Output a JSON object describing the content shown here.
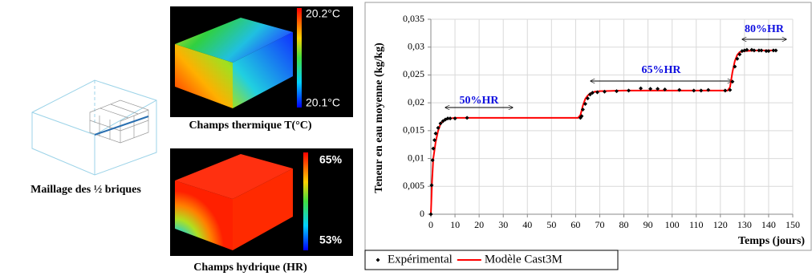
{
  "panels": {
    "mesh_caption": "Maillage des ½ briques",
    "thermal": {
      "caption": "Champs thermique T(°C)",
      "max_label": "20.2°C",
      "min_label": "20.1°C"
    },
    "hydric": {
      "caption": "Champs hydrique (HR)",
      "max_label": "65%",
      "min_label": "53%"
    }
  },
  "chart_data": {
    "type": "line",
    "ylabel": "Teneur en eau moyenne (kg/kg)",
    "xlabel": "Temps (jours)",
    "xlim": [
      0,
      150
    ],
    "xticks": [
      0,
      10,
      20,
      30,
      40,
      50,
      60,
      70,
      80,
      90,
      100,
      110,
      120,
      130,
      140,
      150
    ],
    "ylim": [
      0,
      0.035
    ],
    "yticks": [
      0,
      {
        "value": 0.005,
        "label": "0,005"
      },
      {
        "value": 0.01,
        "label": "0,01"
      },
      {
        "value": 0.015,
        "label": "0,015"
      },
      {
        "value": 0.02,
        "label": "0,02"
      },
      {
        "value": 0.025,
        "label": "0,025"
      },
      {
        "value": 0.03,
        "label": "0,03"
      },
      {
        "value": 0.035,
        "label": "0,035"
      }
    ],
    "grid": true,
    "annotations": [
      "50%HR",
      "65%HR",
      "80%HR"
    ],
    "series": [
      {
        "name": "Expérimental",
        "color": "#000000",
        "style": "markers",
        "x": [
          0,
          0.3,
          0.7,
          1,
          1.5,
          2,
          3,
          4,
          5,
          6,
          7,
          8,
          10,
          15,
          62,
          62.5,
          63,
          64,
          65,
          66,
          67,
          69,
          72,
          77,
          82,
          87,
          91,
          94,
          97,
          103,
          109,
          112,
          115,
          122,
          124,
          125,
          126,
          127,
          128,
          129,
          130,
          131,
          133,
          134,
          136,
          137,
          139,
          140,
          142,
          143
        ],
        "values": [
          0,
          0.0052,
          0.0097,
          0.0118,
          0.0133,
          0.0145,
          0.0155,
          0.0163,
          0.0167,
          0.017,
          0.0172,
          0.0172,
          0.0172,
          0.0173,
          0.0173,
          0.0176,
          0.0188,
          0.0198,
          0.0208,
          0.0215,
          0.0218,
          0.0219,
          0.022,
          0.0221,
          0.0222,
          0.0226,
          0.0225,
          0.0225,
          0.0224,
          0.0223,
          0.0222,
          0.0222,
          0.0223,
          0.0222,
          0.0223,
          0.0238,
          0.0265,
          0.0279,
          0.0287,
          0.0293,
          0.0294,
          0.0295,
          0.0295,
          0.0294,
          0.0294,
          0.0294,
          0.0293,
          0.0293,
          0.0294,
          0.0294
        ]
      },
      {
        "name": "Modèle Cast3M",
        "color": "#ff0000",
        "style": "line",
        "x": [
          0,
          0.5,
          1,
          2,
          3,
          4,
          5,
          6,
          8,
          10,
          20,
          40,
          61,
          62,
          63,
          64,
          65,
          66,
          68,
          70,
          80,
          100,
          123,
          124,
          125,
          126,
          127,
          128,
          130,
          135,
          143
        ],
        "values": [
          0,
          0.006,
          0.01,
          0.013,
          0.015,
          0.0162,
          0.0167,
          0.017,
          0.0172,
          0.0173,
          0.0173,
          0.0173,
          0.0173,
          0.0178,
          0.0195,
          0.0207,
          0.0213,
          0.0217,
          0.022,
          0.0221,
          0.0222,
          0.0222,
          0.0222,
          0.0228,
          0.0255,
          0.0275,
          0.0286,
          0.0291,
          0.0293,
          0.0294,
          0.0294
        ]
      }
    ]
  }
}
